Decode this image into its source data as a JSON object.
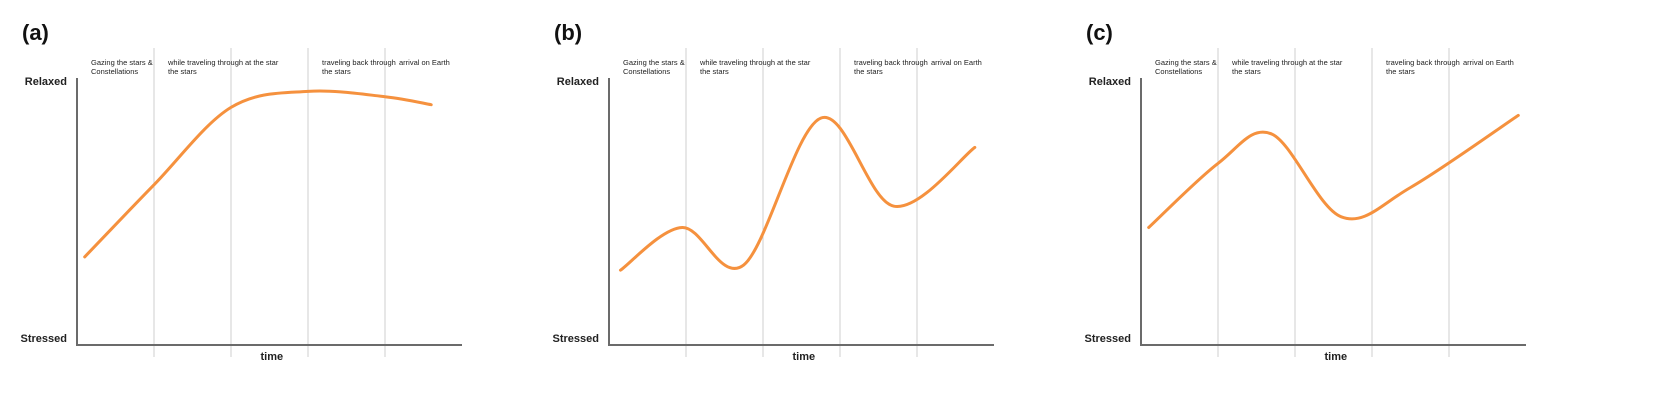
{
  "chart_data": [
    {
      "type": "line",
      "panel_label": "(a)",
      "phases": [
        "Gazing the stars & Constellations",
        "while traveling through the stars",
        "at the star",
        "traveling back through the stars",
        "arrival on Earth"
      ],
      "ytick_top": "Relaxed",
      "ytick_bottom": "Stressed",
      "xlabel": "time",
      "xlim": [
        0,
        5
      ],
      "ylim": [
        0,
        1
      ],
      "grid": "vertical phase dividers",
      "color": "#F5913E",
      "x": [
        0.1,
        1.0,
        2.0,
        3.0,
        4.0,
        4.6
      ],
      "y": [
        0.33,
        0.6,
        0.89,
        0.95,
        0.93,
        0.9
      ]
    },
    {
      "type": "line",
      "panel_label": "(b)",
      "phases": [
        "Gazing the stars & Constellations",
        "while traveling through the stars",
        "at the star",
        "traveling back through the stars",
        "arrival on Earth"
      ],
      "ytick_top": "Relaxed",
      "ytick_bottom": "Stressed",
      "xlabel": "time",
      "xlim": [
        0,
        5
      ],
      "ylim": [
        0,
        1
      ],
      "grid": "vertical phase dividers",
      "color": "#F5913E",
      "x": [
        0.15,
        0.95,
        1.75,
        2.75,
        3.7,
        4.75
      ],
      "y": [
        0.28,
        0.44,
        0.3,
        0.85,
        0.52,
        0.74
      ]
    },
    {
      "type": "line",
      "panel_label": "(c)",
      "phases": [
        "Gazing the stars & Constellations",
        "while traveling through the stars",
        "at the star",
        "traveling back through the stars",
        "arrival on Earth"
      ],
      "ytick_top": "Relaxed",
      "ytick_bottom": "Stressed",
      "xlabel": "time",
      "xlim": [
        0,
        5
      ],
      "ylim": [
        0,
        1
      ],
      "grid": "vertical phase dividers",
      "color": "#F5913E",
      "x": [
        0.1,
        1.0,
        1.7,
        2.6,
        3.5,
        4.9
      ],
      "y": [
        0.44,
        0.68,
        0.79,
        0.48,
        0.59,
        0.86
      ]
    }
  ]
}
